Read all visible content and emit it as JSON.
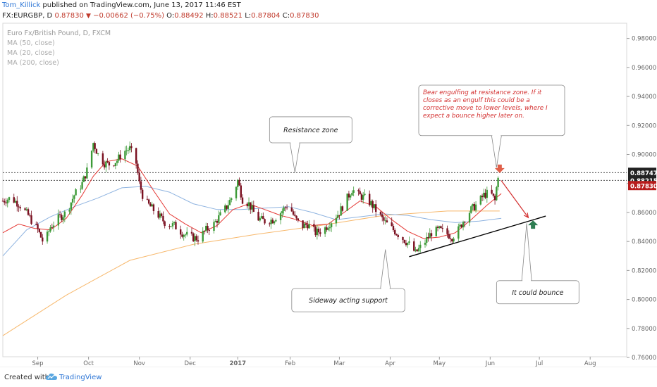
{
  "header": {
    "user": "Tom_Killick",
    "published": "published on TradingView.com, June 13, 2017 11:46 EST",
    "symbol": "FX:EURGBP, D",
    "last": "0.87830",
    "change_arrow": "▼",
    "change": "−0.00662 (−0.75%)",
    "o_label": "O:",
    "o_value": "0.88492",
    "h_label": "H:",
    "h_value": "0.88521",
    "l_label": "L:",
    "l_value": "0.87804",
    "c_label": "C:",
    "c_value": "0.87830"
  },
  "footer": {
    "created_with": "Created with",
    "brand": "TradingView"
  },
  "colors": {
    "up": "#26a69a",
    "up_fill": "#3d9a38",
    "down": "#7a1020",
    "ma50": "#8eb3e0",
    "ma20": "#e53935",
    "ma200": "#f7b86c",
    "annotation_red": "#d32f2f",
    "arrow_down": "#e0604a",
    "arrow_up": "#2e7d52"
  },
  "chart_data": {
    "type": "candlestick",
    "title": "Euro Fx/British Pound, D, FXCM",
    "legend": [
      "MA (50, close)",
      "MA (20, close)",
      "MA (200, close)"
    ],
    "ylim": [
      0.7605,
      0.9905
    ],
    "y_ticks": [
      "0.98000",
      "0.96000",
      "0.94000",
      "0.92000",
      "0.90000",
      "0.88000",
      "0.86000",
      "0.84000",
      "0.82000",
      "0.80000",
      "0.78000",
      "0.76000"
    ],
    "y_tick_values": [
      0.98,
      0.96,
      0.94,
      0.92,
      0.9,
      0.88,
      0.86,
      0.84,
      0.82,
      0.8,
      0.78,
      0.76
    ],
    "x_ticks": [
      "Sep",
      "Oct",
      "Nov",
      "Dec",
      "2017",
      "Feb",
      "Mar",
      "Apr",
      "May",
      "Jun",
      "Jul",
      "Aug"
    ],
    "x_tick_days": [
      22,
      54,
      86,
      118,
      148,
      181,
      212,
      244,
      275,
      307,
      338,
      370
    ],
    "total_days": 393,
    "price_tags": [
      {
        "label": "0.88747",
        "value": 0.88747,
        "style": "dark"
      },
      {
        "label": "0.88215",
        "value": 0.88215,
        "style": "dark"
      },
      {
        "label": "0.87830",
        "value": 0.8783,
        "style": "red"
      }
    ],
    "horizontal_lines": [
      0.88747,
      0.88215
    ],
    "close_anchors": [
      [
        0,
        0.868
      ],
      [
        5,
        0.87
      ],
      [
        10,
        0.866
      ],
      [
        16,
        0.858
      ],
      [
        22,
        0.848
      ],
      [
        26,
        0.838
      ],
      [
        30,
        0.85
      ],
      [
        35,
        0.856
      ],
      [
        40,
        0.86
      ],
      [
        45,
        0.872
      ],
      [
        50,
        0.88
      ],
      [
        54,
        0.892
      ],
      [
        57,
        0.908
      ],
      [
        60,
        0.9
      ],
      [
        64,
        0.894
      ],
      [
        68,
        0.893
      ],
      [
        72,
        0.896
      ],
      [
        76,
        0.902
      ],
      [
        80,
        0.904
      ],
      [
        84,
        0.894
      ],
      [
        86,
        0.88
      ],
      [
        89,
        0.868
      ],
      [
        93,
        0.864
      ],
      [
        98,
        0.858
      ],
      [
        103,
        0.852
      ],
      [
        108,
        0.851
      ],
      [
        113,
        0.846
      ],
      [
        118,
        0.843
      ],
      [
        123,
        0.842
      ],
      [
        128,
        0.848
      ],
      [
        133,
        0.852
      ],
      [
        137,
        0.858
      ],
      [
        141,
        0.864
      ],
      [
        145,
        0.872
      ],
      [
        148,
        0.882
      ],
      [
        151,
        0.869
      ],
      [
        155,
        0.866
      ],
      [
        160,
        0.856
      ],
      [
        165,
        0.854
      ],
      [
        170,
        0.855
      ],
      [
        175,
        0.86
      ],
      [
        180,
        0.866
      ],
      [
        184,
        0.856
      ],
      [
        188,
        0.85
      ],
      [
        192,
        0.852
      ],
      [
        197,
        0.846
      ],
      [
        202,
        0.848
      ],
      [
        207,
        0.854
      ],
      [
        212,
        0.86
      ],
      [
        216,
        0.868
      ],
      [
        220,
        0.876
      ],
      [
        224,
        0.872
      ],
      [
        228,
        0.87
      ],
      [
        232,
        0.866
      ],
      [
        236,
        0.86
      ],
      [
        240,
        0.854
      ],
      [
        244,
        0.85
      ],
      [
        248,
        0.846
      ],
      [
        252,
        0.842
      ],
      [
        256,
        0.838
      ],
      [
        260,
        0.832
      ],
      [
        263,
        0.836
      ],
      [
        266,
        0.84
      ],
      [
        270,
        0.846
      ],
      [
        275,
        0.848
      ],
      [
        279,
        0.846
      ],
      [
        283,
        0.843
      ],
      [
        287,
        0.848
      ],
      [
        291,
        0.856
      ],
      [
        295,
        0.862
      ],
      [
        299,
        0.866
      ],
      [
        303,
        0.872
      ],
      [
        307,
        0.874
      ],
      [
        310,
        0.868
      ],
      [
        312,
        0.886
      ],
      [
        314,
        0.878
      ]
    ],
    "ma200_points": [
      [
        0,
        0.775
      ],
      [
        40,
        0.803
      ],
      [
        80,
        0.827
      ],
      [
        120,
        0.838
      ],
      [
        160,
        0.845
      ],
      [
        200,
        0.851
      ],
      [
        240,
        0.858
      ],
      [
        280,
        0.861
      ],
      [
        313,
        0.861
      ]
    ],
    "ma50_points": [
      [
        0,
        0.83
      ],
      [
        15,
        0.848
      ],
      [
        30,
        0.857
      ],
      [
        45,
        0.864
      ],
      [
        60,
        0.87
      ],
      [
        75,
        0.877
      ],
      [
        90,
        0.878
      ],
      [
        105,
        0.874
      ],
      [
        120,
        0.866
      ],
      [
        135,
        0.862
      ],
      [
        150,
        0.862
      ],
      [
        165,
        0.863
      ],
      [
        180,
        0.864
      ],
      [
        195,
        0.86
      ],
      [
        210,
        0.855
      ],
      [
        225,
        0.857
      ],
      [
        240,
        0.859
      ],
      [
        255,
        0.858
      ],
      [
        270,
        0.855
      ],
      [
        285,
        0.853
      ],
      [
        300,
        0.854
      ],
      [
        314,
        0.856
      ]
    ],
    "ma20_points": [
      [
        0,
        0.846
      ],
      [
        10,
        0.852
      ],
      [
        20,
        0.849
      ],
      [
        30,
        0.848
      ],
      [
        40,
        0.856
      ],
      [
        50,
        0.872
      ],
      [
        57,
        0.885
      ],
      [
        65,
        0.895
      ],
      [
        75,
        0.897
      ],
      [
        85,
        0.892
      ],
      [
        95,
        0.875
      ],
      [
        105,
        0.859
      ],
      [
        115,
        0.852
      ],
      [
        125,
        0.846
      ],
      [
        135,
        0.851
      ],
      [
        145,
        0.862
      ],
      [
        155,
        0.866
      ],
      [
        165,
        0.862
      ],
      [
        175,
        0.858
      ],
      [
        185,
        0.855
      ],
      [
        195,
        0.851
      ],
      [
        205,
        0.852
      ],
      [
        215,
        0.86
      ],
      [
        225,
        0.868
      ],
      [
        235,
        0.864
      ],
      [
        245,
        0.855
      ],
      [
        255,
        0.847
      ],
      [
        265,
        0.842
      ],
      [
        275,
        0.843
      ],
      [
        285,
        0.846
      ],
      [
        295,
        0.855
      ],
      [
        305,
        0.865
      ],
      [
        314,
        0.873
      ]
    ],
    "trend_line": [
      [
        256,
        0.8295
      ],
      [
        342,
        0.8575
      ]
    ],
    "projection_path": [
      [
        314,
        0.882
      ],
      [
        331,
        0.8565
      ]
    ],
    "arrow_down_at": [
      313,
      0.8872
    ],
    "arrow_up_at": [
      334,
      0.8546
    ],
    "annotations": [
      {
        "text": "Resistance zone",
        "box": [
          168,
          0.926,
          0.908
        ],
        "anchor": [
          184,
          0.8876
        ],
        "style": "black"
      },
      {
        "text": "Sideway acting support",
        "box": [
          182,
          0.8075,
          0.7915
        ],
        "anchor": [
          241,
          0.8345
        ],
        "style": "black"
      },
      {
        "text": "It could bounce",
        "box": [
          311,
          0.813,
          0.797
        ],
        "anchor": [
          330,
          0.8525
        ],
        "style": "black"
      },
      {
        "text": "Bear engulfing at resistance zone. If it closes as an engulf this could be a corrective move to lower levels, where I expect a bounce higher later on.",
        "box": [
          262,
          0.9478,
          0.913
        ],
        "anchor": [
          311,
          0.891
        ],
        "style": "red"
      }
    ]
  }
}
